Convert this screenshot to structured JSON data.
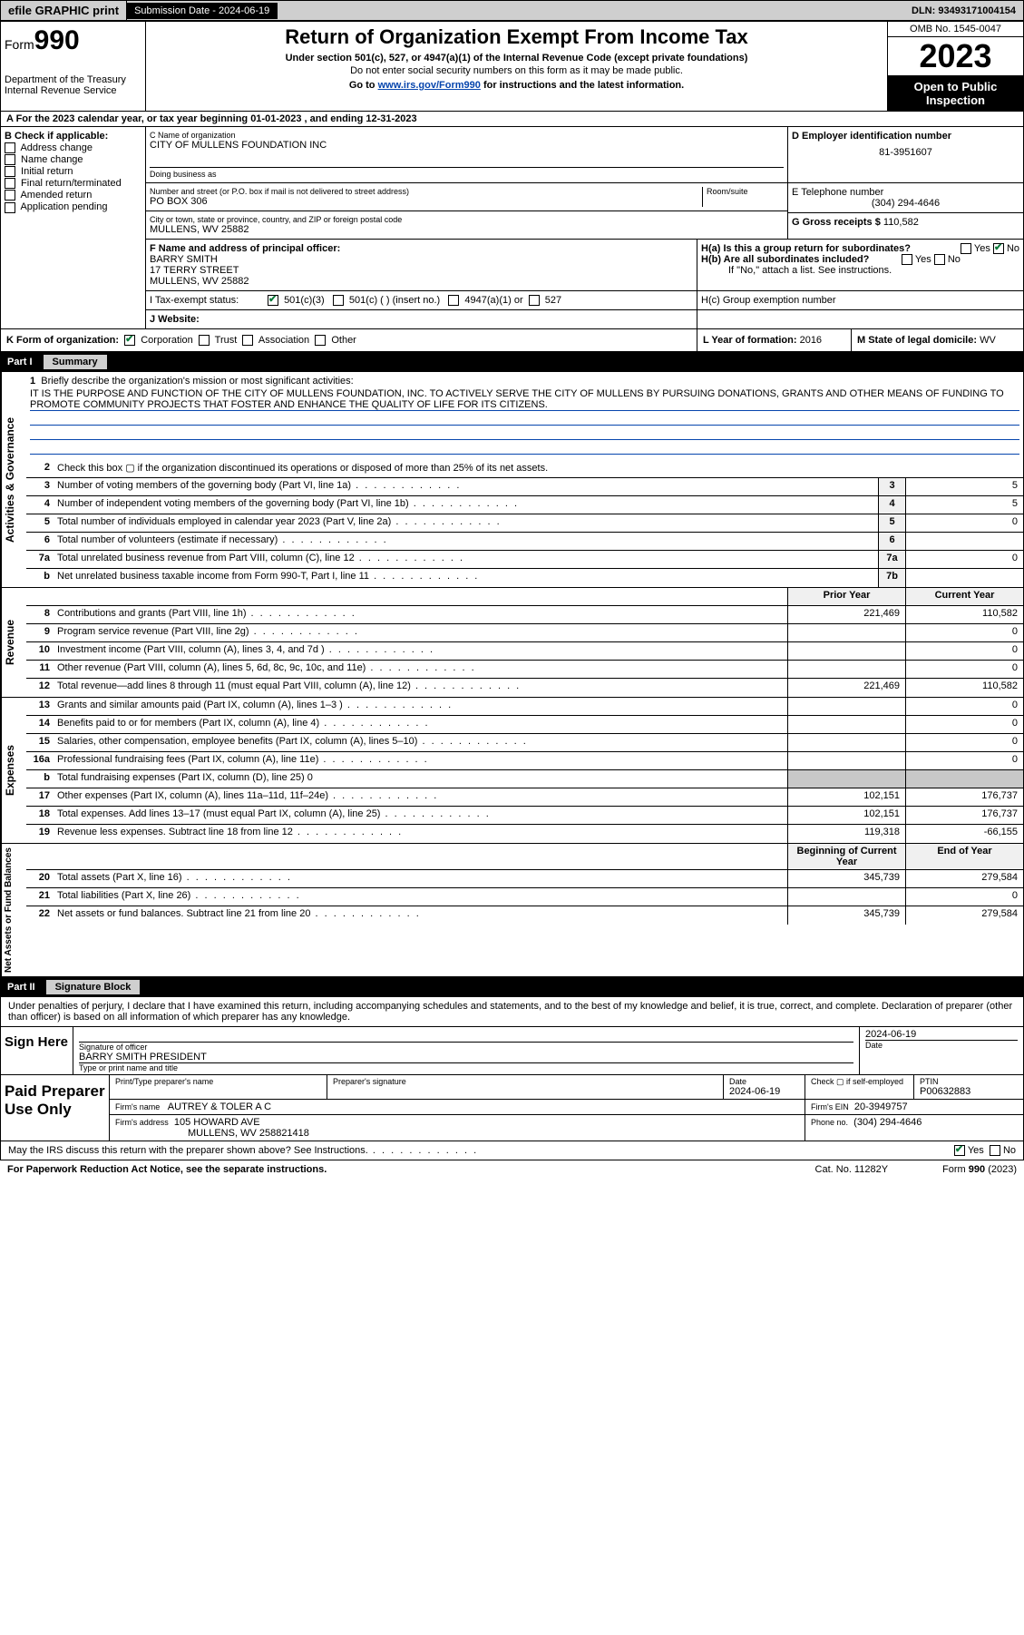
{
  "topbar": {
    "efile": "efile GRAPHIC print",
    "subdate_label": "Submission Date - 2024-06-19",
    "dln": "DLN: 93493171004154"
  },
  "header": {
    "form_prefix": "Form",
    "form_number": "990",
    "dept": "Department of the Treasury\nInternal Revenue Service",
    "title": "Return of Organization Exempt From Income Tax",
    "sub": "Under section 501(c), 527, or 4947(a)(1) of the Internal Revenue Code (except private foundations)",
    "sub2": "Do not enter social security numbers on this form as it may be made public.",
    "sub3_pre": "Go to ",
    "sub3_link": "www.irs.gov/Form990",
    "sub3_post": " for instructions and the latest information.",
    "omb": "OMB No. 1545-0047",
    "year": "2023",
    "open": "Open to Public Inspection"
  },
  "row_a": "A  For the 2023 calendar year, or tax year beginning 01-01-2023    , and ending 12-31-2023",
  "col_b": {
    "hdr": "B Check if applicable:",
    "items": [
      "Address change",
      "Name change",
      "Initial return",
      "Final return/terminated",
      "Amended return",
      "Application pending"
    ]
  },
  "name_block": {
    "c_label": "C Name of organization",
    "c_name": "CITY OF MULLENS FOUNDATION INC",
    "dba_label": "Doing business as",
    "dba": "",
    "addr_label": "Number and street (or P.O. box if mail is not delivered to street address)",
    "room_label": "Room/suite",
    "addr": "PO BOX 306",
    "city_label": "City or town, state or province, country, and ZIP or foreign postal code",
    "city": "MULLENS, WV  25882",
    "d_label": "D Employer identification number",
    "d_ein": "81-3951607",
    "e_label": "E Telephone number",
    "e_phone": "(304) 294-4646",
    "g_label": "G Gross receipts $",
    "g_val": "110,582"
  },
  "officer": {
    "f_label": "F Name and address of principal officer:",
    "name": "BARRY SMITH",
    "addr1": "17 TERRY STREET",
    "addr2": "MULLENS, WV  25882",
    "ha": "H(a)  Is this a group return for subordinates?",
    "ha_yes": "Yes",
    "ha_no": "No",
    "hb": "H(b)  Are all subordinates included?",
    "hb_yes": "Yes",
    "hb_no": "No",
    "hb_note": "If \"No,\" attach a list. See instructions.",
    "hc": "H(c)  Group exemption number"
  },
  "status": {
    "i_label": "I   Tax-exempt status:",
    "opt1": "501(c)(3)",
    "opt2": "501(c) (  ) (insert no.)",
    "opt3": "4947(a)(1) or",
    "opt4": "527",
    "j_label": "J   Website:"
  },
  "form_org": {
    "k_label": "K Form of organization:",
    "opts": [
      "Corporation",
      "Trust",
      "Association",
      "Other"
    ],
    "l_label": "L Year of formation:",
    "l_val": "2016",
    "m_label": "M State of legal domicile:",
    "m_val": "WV"
  },
  "part1": {
    "num": "Part I",
    "title": "Summary"
  },
  "mission": {
    "q": "Briefly describe the organization's mission or most significant activities:",
    "text": "IT IS THE PURPOSE AND FUNCTION OF THE CITY OF MULLENS FOUNDATION, INC. TO ACTIVELY SERVE THE CITY OF MULLENS BY PURSUING DONATIONS, GRANTS AND OTHER MEANS OF FUNDING TO PROMOTE COMMUNITY PROJECTS THAT FOSTER AND ENHANCE THE QUALITY OF LIFE FOR ITS CITIZENS."
  },
  "lines_gov": [
    {
      "n": "2",
      "d": "Check this box ▢ if the organization discontinued its operations or disposed of more than 25% of its net assets.",
      "b": "",
      "v": ""
    },
    {
      "n": "3",
      "d": "Number of voting members of the governing body (Part VI, line 1a)",
      "b": "3",
      "v": "5"
    },
    {
      "n": "4",
      "d": "Number of independent voting members of the governing body (Part VI, line 1b)",
      "b": "4",
      "v": "5"
    },
    {
      "n": "5",
      "d": "Total number of individuals employed in calendar year 2023 (Part V, line 2a)",
      "b": "5",
      "v": "0"
    },
    {
      "n": "6",
      "d": "Total number of volunteers (estimate if necessary)",
      "b": "6",
      "v": ""
    },
    {
      "n": "7a",
      "d": "Total unrelated business revenue from Part VIII, column (C), line 12",
      "b": "7a",
      "v": "0"
    },
    {
      "n": "b",
      "d": "Net unrelated business taxable income from Form 990-T, Part I, line 11",
      "b": "7b",
      "v": ""
    }
  ],
  "col_hdrs": {
    "prior": "Prior Year",
    "current": "Current Year"
  },
  "lines_rev": [
    {
      "n": "8",
      "d": "Contributions and grants (Part VIII, line 1h)",
      "p": "221,469",
      "c": "110,582"
    },
    {
      "n": "9",
      "d": "Program service revenue (Part VIII, line 2g)",
      "p": "",
      "c": "0"
    },
    {
      "n": "10",
      "d": "Investment income (Part VIII, column (A), lines 3, 4, and 7d )",
      "p": "",
      "c": "0"
    },
    {
      "n": "11",
      "d": "Other revenue (Part VIII, column (A), lines 5, 6d, 8c, 9c, 10c, and 11e)",
      "p": "",
      "c": "0"
    },
    {
      "n": "12",
      "d": "Total revenue—add lines 8 through 11 (must equal Part VIII, column (A), line 12)",
      "p": "221,469",
      "c": "110,582"
    }
  ],
  "lines_exp": [
    {
      "n": "13",
      "d": "Grants and similar amounts paid (Part IX, column (A), lines 1–3 )",
      "p": "",
      "c": "0"
    },
    {
      "n": "14",
      "d": "Benefits paid to or for members (Part IX, column (A), line 4)",
      "p": "",
      "c": "0"
    },
    {
      "n": "15",
      "d": "Salaries, other compensation, employee benefits (Part IX, column (A), lines 5–10)",
      "p": "",
      "c": "0"
    },
    {
      "n": "16a",
      "d": "Professional fundraising fees (Part IX, column (A), line 11e)",
      "p": "",
      "c": "0"
    },
    {
      "n": "b",
      "d": "Total fundraising expenses (Part IX, column (D), line 25) 0",
      "p": "—",
      "c": "—"
    },
    {
      "n": "17",
      "d": "Other expenses (Part IX, column (A), lines 11a–11d, 11f–24e)",
      "p": "102,151",
      "c": "176,737"
    },
    {
      "n": "18",
      "d": "Total expenses. Add lines 13–17 (must equal Part IX, column (A), line 25)",
      "p": "102,151",
      "c": "176,737"
    },
    {
      "n": "19",
      "d": "Revenue less expenses. Subtract line 18 from line 12",
      "p": "119,318",
      "c": "-66,155"
    }
  ],
  "col_hdrs2": {
    "beg": "Beginning of Current Year",
    "end": "End of Year"
  },
  "lines_net": [
    {
      "n": "20",
      "d": "Total assets (Part X, line 16)",
      "p": "345,739",
      "c": "279,584"
    },
    {
      "n": "21",
      "d": "Total liabilities (Part X, line 26)",
      "p": "",
      "c": "0"
    },
    {
      "n": "22",
      "d": "Net assets or fund balances. Subtract line 21 from line 20",
      "p": "345,739",
      "c": "279,584"
    }
  ],
  "part2": {
    "num": "Part II",
    "title": "Signature Block"
  },
  "sig_intro": "Under penalties of perjury, I declare that I have examined this return, including accompanying schedules and statements, and to the best of my knowledge and belief, it is true, correct, and complete. Declaration of preparer (other than officer) is based on all information of which preparer has any knowledge.",
  "sign": {
    "label": "Sign Here",
    "sig_label": "Signature of officer",
    "name": "BARRY SMITH PRESIDENT",
    "name_label": "Type or print name and title",
    "date_label": "Date",
    "date": "2024-06-19"
  },
  "prep": {
    "label": "Paid Preparer Use Only",
    "pt_name_label": "Print/Type preparer's name",
    "pt_name": "",
    "sig_label": "Preparer's signature",
    "date_label": "Date",
    "date": "2024-06-19",
    "check_label": "Check ▢ if self-employed",
    "ptin_label": "PTIN",
    "ptin": "P00632883",
    "firm_name_label": "Firm's name",
    "firm_name": "AUTREY & TOLER A C",
    "firm_ein_label": "Firm's EIN",
    "firm_ein": "20-3949757",
    "firm_addr_label": "Firm's address",
    "firm_addr1": "105 HOWARD AVE",
    "firm_addr2": "MULLENS, WV  258821418",
    "phone_label": "Phone no.",
    "phone": "(304) 294-4646"
  },
  "footer": {
    "discuss": "May the IRS discuss this return with the preparer shown above? See Instructions.",
    "yes": "Yes",
    "no": "No",
    "pra": "For Paperwork Reduction Act Notice, see the separate instructions.",
    "cat": "Cat. No. 11282Y",
    "form": "Form 990 (2023)"
  },
  "vlabels": {
    "gov": "Activities & Governance",
    "rev": "Revenue",
    "exp": "Expenses",
    "net": "Net Assets or Fund Balances"
  }
}
